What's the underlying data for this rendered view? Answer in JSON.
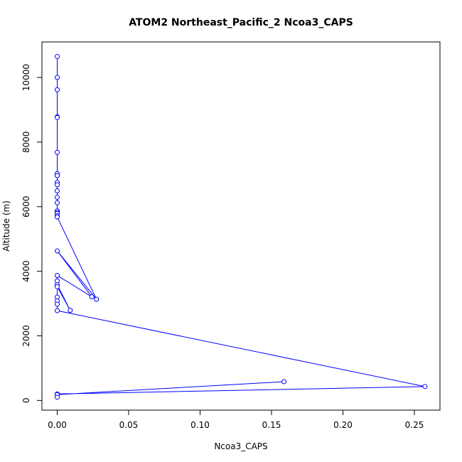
{
  "chart_data": {
    "type": "line",
    "title": "ATOM2 Northeast_Pacific_2 Ncoa3_CAPS",
    "xlabel": "Ncoa3_CAPS",
    "ylabel": "Altitude (m)",
    "xlim": [
      -0.0107,
      0.2679
    ],
    "ylim": [
      -300,
      11100
    ],
    "x_ticks": [
      0.0,
      0.05,
      0.1,
      0.15,
      0.2,
      0.25
    ],
    "x_tick_labels": [
      "0.00",
      "0.05",
      "0.10",
      "0.15",
      "0.20",
      "0.25"
    ],
    "y_ticks": [
      0,
      2000,
      4000,
      6000,
      8000,
      10000
    ],
    "y_tick_labels": [
      "0",
      "2000",
      "4000",
      "6000",
      "8000",
      "10000"
    ],
    "color": "#0000ff",
    "series": [
      {
        "x": [
          0,
          0,
          0,
          0,
          0,
          0,
          0,
          0,
          0,
          0,
          0,
          0,
          0,
          0,
          0,
          0,
          0,
          0,
          0.0275,
          0,
          0.0242,
          0,
          0,
          0,
          0.0091,
          0,
          0,
          0,
          0,
          0,
          0.2574,
          0,
          0,
          0.1587,
          0,
          0
        ],
        "y": [
          10650,
          10000,
          9620,
          8780,
          8760,
          7680,
          7020,
          6960,
          6750,
          6680,
          6490,
          6290,
          6120,
          5870,
          5820,
          5790,
          5720,
          5680,
          3130,
          4630,
          3210,
          3870,
          3700,
          3580,
          2790,
          3520,
          3200,
          3080,
          2980,
          2780,
          430,
          200,
          180,
          580,
          180,
          100
        ]
      }
    ]
  }
}
